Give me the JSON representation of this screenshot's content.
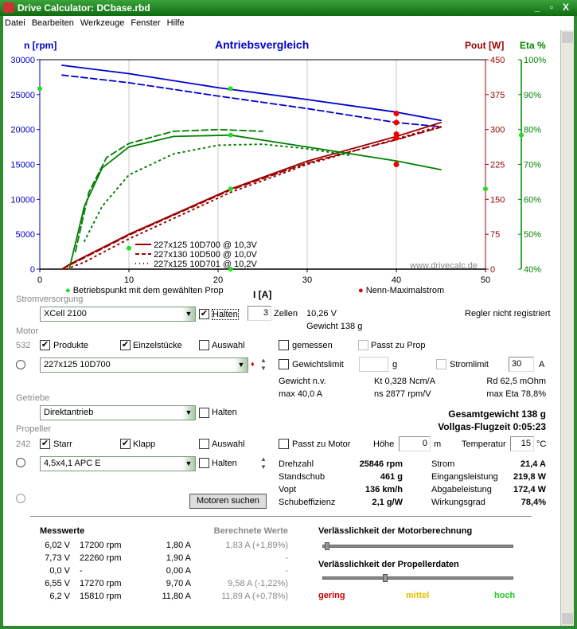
{
  "window": {
    "title": "Drive Calculator: DCbase.rbd",
    "min": "_",
    "max": "▫",
    "close": "X"
  },
  "menu": [
    "Datei",
    "Bearbeiten",
    "Werkzeuge",
    "Fenster",
    "Hilfe"
  ],
  "chart_data": {
    "type": "line",
    "title": "Antriebsvergleich",
    "xlabel": "I [A]",
    "ylabel_left": "n [rpm]",
    "ylabel_right1": "Pout [W]",
    "ylabel_right2": "Eta %",
    "xlim": [
      0,
      50
    ],
    "ylim_left": [
      0,
      30000
    ],
    "ylim_right1": [
      0,
      450
    ],
    "ylim_right2": [
      40,
      100
    ],
    "x_ticks": [
      "0",
      "10",
      "20",
      "30",
      "40",
      "50"
    ],
    "y_ticks_left": [
      "0",
      "5000",
      "10000",
      "15000",
      "20000",
      "25000",
      "30000"
    ],
    "y_ticks_right1": [
      "0",
      "75",
      "150",
      "225",
      "300",
      "375",
      "450"
    ],
    "y_ticks_right2": [
      "40%",
      "50%",
      "60%",
      "70%",
      "80%",
      "90%",
      "100%"
    ],
    "grid": true,
    "watermark": "www.drivecalc.de",
    "legend": [
      "227x125 10D700 @ 10,3V",
      "227x130 10D500 @ 10,0V",
      "227x125 10D701 @ 10,2V"
    ],
    "series": [
      {
        "name": "227x125 10D700 @ 10,3V",
        "quantity": "rpm",
        "axis": "left",
        "style": "solid",
        "color": "#0000cc",
        "points": [
          [
            2.5,
            29200
          ],
          [
            10,
            28000
          ],
          [
            20,
            26000
          ],
          [
            30,
            24300
          ],
          [
            40,
            22500
          ],
          [
            45,
            21300
          ]
        ]
      },
      {
        "name": "227x130 10D500 @ 10,0V",
        "quantity": "rpm",
        "axis": "left",
        "style": "dashed",
        "color": "#0000cc",
        "points": [
          [
            2.5,
            27800
          ],
          [
            10,
            26700
          ],
          [
            20,
            24800
          ],
          [
            30,
            23000
          ],
          [
            40,
            21000
          ],
          [
            45,
            20400
          ]
        ]
      },
      {
        "name": "227x125 10D700 @ 10,3V",
        "quantity": "Pout",
        "axis": "right1",
        "style": "solid",
        "color": "#990000",
        "points": [
          [
            2.5,
            0
          ],
          [
            3.3,
            10
          ],
          [
            10,
            75
          ],
          [
            21.4,
            172
          ],
          [
            30,
            232
          ],
          [
            40,
            285
          ],
          [
            45,
            315
          ]
        ]
      },
      {
        "name": "227x130 10D500 @ 10,0V",
        "quantity": "Pout",
        "axis": "right1",
        "style": "dashed",
        "color": "#990000",
        "points": [
          [
            2.5,
            0
          ],
          [
            3.5,
            10
          ],
          [
            10,
            73
          ],
          [
            21.4,
            170
          ],
          [
            30,
            228
          ],
          [
            40,
            278
          ],
          [
            45,
            305
          ]
        ]
      },
      {
        "name": "227x125 10D701 @ 10,2V",
        "quantity": "Pout",
        "axis": "right1",
        "style": "dotted",
        "color": "#990000",
        "points": [
          [
            3,
            0
          ],
          [
            5,
            15
          ],
          [
            10,
            65
          ],
          [
            21.4,
            165
          ],
          [
            30,
            225
          ],
          [
            40,
            280
          ],
          [
            45,
            308
          ]
        ]
      },
      {
        "name": "227x125 10D700 @ 10,3V",
        "quantity": "Eta",
        "axis": "right2",
        "style": "solid",
        "color": "#008000",
        "points": [
          [
            3.3,
            40
          ],
          [
            5,
            58
          ],
          [
            7,
            69
          ],
          [
            10,
            75
          ],
          [
            15,
            78
          ],
          [
            21.4,
            78.4
          ],
          [
            30,
            75
          ],
          [
            40,
            71
          ],
          [
            45,
            68.5
          ]
        ]
      },
      {
        "name": "227x130 10D500 @ 10,0V",
        "quantity": "Eta",
        "axis": "right2",
        "style": "dashed",
        "color": "#008000",
        "points": [
          [
            4,
            45
          ],
          [
            5.5,
            62
          ],
          [
            7.5,
            72
          ],
          [
            10,
            76
          ],
          [
            15,
            79.5
          ],
          [
            20,
            80
          ],
          [
            25,
            79.5
          ]
        ]
      },
      {
        "name": "227x125 10D701 @ 10,2V",
        "quantity": "Eta",
        "axis": "right2",
        "style": "dotted",
        "color": "#008000",
        "points": [
          [
            5,
            48
          ],
          [
            7,
            58
          ],
          [
            10,
            67
          ],
          [
            15,
            73
          ],
          [
            20,
            75.5
          ],
          [
            25,
            75.8
          ],
          [
            30,
            74.5
          ],
          [
            35,
            72.5
          ]
        ]
      }
    ],
    "operating_points": [
      [
        21.4,
        25846,
        "left"
      ],
      [
        21.4,
        78.4,
        "right2"
      ],
      [
        21.4,
        172.4,
        "right1"
      ],
      [
        10,
        46,
        "right2"
      ]
    ],
    "max_current_points": [
      [
        40,
        22300,
        "left"
      ],
      [
        40,
        21000,
        "left"
      ],
      [
        40,
        290,
        "right1"
      ],
      [
        40,
        282,
        "right1"
      ],
      [
        40,
        225,
        "right1"
      ]
    ],
    "legend_bottom": {
      "green": "Betriebspunkt mit dem gewählten Prop",
      "red": "Nenn-Maximalstrom"
    }
  },
  "power": {
    "section": "Stromversorgung",
    "battery": "XCell 2100",
    "hold_label": "Halten",
    "hold": true,
    "cells": "3",
    "cells_label": "Zellen",
    "voltage": "10,26 V",
    "weight": "Gewicht 138 g",
    "regler": "Regler nicht registriert"
  },
  "motor": {
    "section": "Motor",
    "count": "532",
    "products": "Produkte",
    "products_checked": true,
    "singles": "Einzelstücke",
    "singles_checked": true,
    "selection": "Auswahl",
    "measured": "gemessen",
    "fits_prop": "Passt zu Prop",
    "selected": "227x125 10D700",
    "weight_limit": "Gewichtslimit",
    "weight_unit": "g",
    "current_limit": "Stromlimit",
    "current_limit_value": "30",
    "current_unit": "A",
    "weight": "Gewicht n.v.",
    "kt": "Kt 0,328 Ncm/A",
    "rd": "Rd 62,5 mOhm",
    "max_current": "max 40,0 A",
    "ns": "ns 2877 rpm/V",
    "max_eta": "max Eta 78,8%"
  },
  "gear": {
    "section": "Getriebe",
    "selected": "Direktantrieb",
    "hold": "Halten"
  },
  "totals": {
    "weight": "Gesamtgewicht 138 g",
    "flight_time": "Vollgas-Flugzeit 0:05:23"
  },
  "prop": {
    "section": "Propeller",
    "count": "242",
    "fixed": "Starr",
    "folding": "Klapp",
    "selection": "Auswahl",
    "fits_motor": "Passt zu Motor",
    "altitude_label": "Höhe",
    "altitude": "0",
    "altitude_unit": "m",
    "temp_label": "Temperatur",
    "temp": "15",
    "temp_unit": "°C",
    "selected": "4,5x4,1 APC E",
    "hold": "Halten",
    "search": "Motoren suchen"
  },
  "results": {
    "left": [
      [
        "Drehzahl",
        "25846 rpm"
      ],
      [
        "Standschub",
        "461 g"
      ],
      [
        "Vopt",
        "136 km/h"
      ],
      [
        "Schubeffizienz",
        "2,1 g/W"
      ]
    ],
    "right": [
      [
        "Strom",
        "21,4 A"
      ],
      [
        "Eingangsleistung",
        "219,8 W"
      ],
      [
        "Abgabeleistung",
        "172,4 W"
      ],
      [
        "Wirkungsgrad",
        "78,4%"
      ]
    ]
  },
  "measurements": {
    "title": "Messwerte",
    "calc_title": "Berechnete Werte",
    "rows": [
      [
        "6,02 V",
        "17200 rpm",
        "1,80 A",
        "1,83 A (+1,89%)"
      ],
      [
        "7,73 V",
        "22260 rpm",
        "1,90 A",
        "-"
      ],
      [
        "0,0 V",
        "-",
        "0,00 A",
        "-"
      ],
      [
        "6,55 V",
        "17270 rpm",
        "9,70 A",
        "9,58 A (-1,22%)"
      ],
      [
        "6,2 V",
        "15810 rpm",
        "11,80 A",
        "11,89 A (+0,78%)"
      ]
    ]
  },
  "reliability": {
    "motor_title": "Verlässlichkeit der Motorberechnung",
    "motor_level": 0.01,
    "prop_title": "Verlässlichkeit der Propellerdaten",
    "prop_level": 0.32,
    "low": "gering",
    "mid": "mittel",
    "high": "hoch",
    "low_color": "#cc0000",
    "mid_color": "#e0c000",
    "high_color": "#22cc22"
  }
}
